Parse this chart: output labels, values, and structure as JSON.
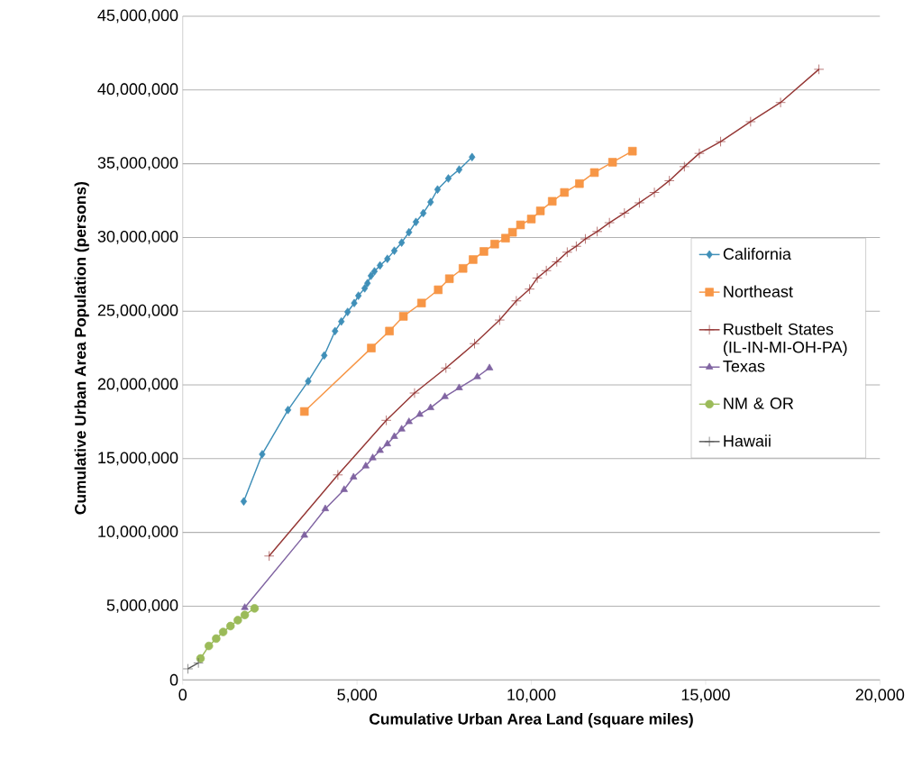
{
  "chart_data": {
    "type": "line",
    "xlabel": "Cumulative Urban Area Land (square miles)",
    "ylabel": "Cumulative Urban Area Population (persons)",
    "xlim": [
      0,
      20000
    ],
    "xticks": [
      0,
      {
        "value": 5000,
        "label": "5,000"
      },
      {
        "value": 10000,
        "label": "10,000"
      },
      {
        "value": 15000,
        "label": "15,000"
      },
      {
        "value": 20000,
        "label": "20,000"
      }
    ],
    "ylim": [
      0,
      45000000
    ],
    "yticks": [
      0,
      {
        "value": 5000000,
        "label": "5,000,000"
      },
      {
        "value": 10000000,
        "label": "10,000,000"
      },
      {
        "value": 15000000,
        "label": "15,000,000"
      },
      {
        "value": 20000000,
        "label": "20,000,000"
      },
      {
        "value": 25000000,
        "label": "25,000,000"
      },
      {
        "value": 30000000,
        "label": "30,000,000"
      },
      {
        "value": 35000000,
        "label": "35,000,000"
      },
      {
        "value": 40000000,
        "label": "40,000,000"
      },
      {
        "value": 45000000,
        "label": "45,000,000"
      }
    ],
    "grid": "y",
    "legend": "right",
    "line_style": "solid",
    "series": [
      {
        "name": "California",
        "color": "#3f8fb8",
        "marker": "diamond",
        "x": [
          1750,
          2280,
          3020,
          3600,
          4060,
          4370,
          4550,
          4730,
          4920,
          5040,
          5220,
          5300,
          5400,
          5500,
          5660,
          5870,
          6070,
          6280,
          6490,
          6690,
          6900,
          7110,
          7310,
          7620,
          7930,
          8300
        ],
        "values": [
          12100000,
          15300000,
          18300000,
          20250000,
          22000000,
          23650000,
          24300000,
          24950000,
          25550000,
          26050000,
          26550000,
          26900000,
          27400000,
          27700000,
          28100000,
          28550000,
          29100000,
          29650000,
          30350000,
          31050000,
          31650000,
          32400000,
          33250000,
          34000000,
          34600000,
          35450000
        ]
      },
      {
        "name": "Northeast",
        "color": "#f79646",
        "marker": "square",
        "x": [
          3490,
          5410,
          5930,
          6330,
          6850,
          7330,
          7650,
          8040,
          8330,
          8640,
          8950,
          9260,
          9460,
          9690,
          10000,
          10260,
          10600,
          10950,
          11380,
          11810,
          12330,
          12900
        ],
        "values": [
          18200000,
          22500000,
          23650000,
          24650000,
          25550000,
          26450000,
          27200000,
          27900000,
          28500000,
          29050000,
          29550000,
          29950000,
          30350000,
          30850000,
          31250000,
          31800000,
          32450000,
          33050000,
          33650000,
          34400000,
          35100000,
          35850000
        ]
      },
      {
        "name": "Rustbelt States (IL-IN-MI-OH-PA)",
        "color": "#953735",
        "marker": "cross",
        "x": [
          2480,
          4450,
          5840,
          6650,
          7550,
          8370,
          9090,
          9570,
          9950,
          10170,
          10430,
          10730,
          11030,
          11290,
          11550,
          11890,
          12240,
          12670,
          13100,
          13530,
          13960,
          14390,
          14820,
          15430,
          16290,
          17150,
          18250
        ],
        "values": [
          8400000,
          13900000,
          17600000,
          19450000,
          21150000,
          22800000,
          24400000,
          25700000,
          26500000,
          27250000,
          27750000,
          28350000,
          29000000,
          29400000,
          29900000,
          30400000,
          31000000,
          31650000,
          32350000,
          33050000,
          33850000,
          34800000,
          35700000,
          36500000,
          37850000,
          39150000,
          41400000
        ]
      },
      {
        "name": "Texas",
        "color": "#8064a2",
        "marker": "triangle",
        "x": [
          1780,
          3490,
          4090,
          4630,
          4900,
          5250,
          5450,
          5660,
          5870,
          6070,
          6280,
          6490,
          6800,
          7110,
          7520,
          7930,
          8450,
          8800
        ],
        "values": [
          4900000,
          9800000,
          11600000,
          12900000,
          13750000,
          14500000,
          15050000,
          15550000,
          16000000,
          16500000,
          17000000,
          17500000,
          18000000,
          18450000,
          19200000,
          19800000,
          20550000,
          21150000
        ]
      },
      {
        "name": "NM & OR",
        "color": "#9bbb59",
        "marker": "circle",
        "x": [
          510,
          750,
          960,
          1160,
          1370,
          1580,
          1780,
          2060
        ],
        "values": [
          1450000,
          2300000,
          2800000,
          3250000,
          3650000,
          4050000,
          4400000,
          4850000
        ]
      },
      {
        "name": "Hawaii",
        "color": "#595959",
        "marker": "cross",
        "x": [
          150,
          450
        ],
        "values": [
          750000,
          1150000
        ]
      }
    ]
  }
}
